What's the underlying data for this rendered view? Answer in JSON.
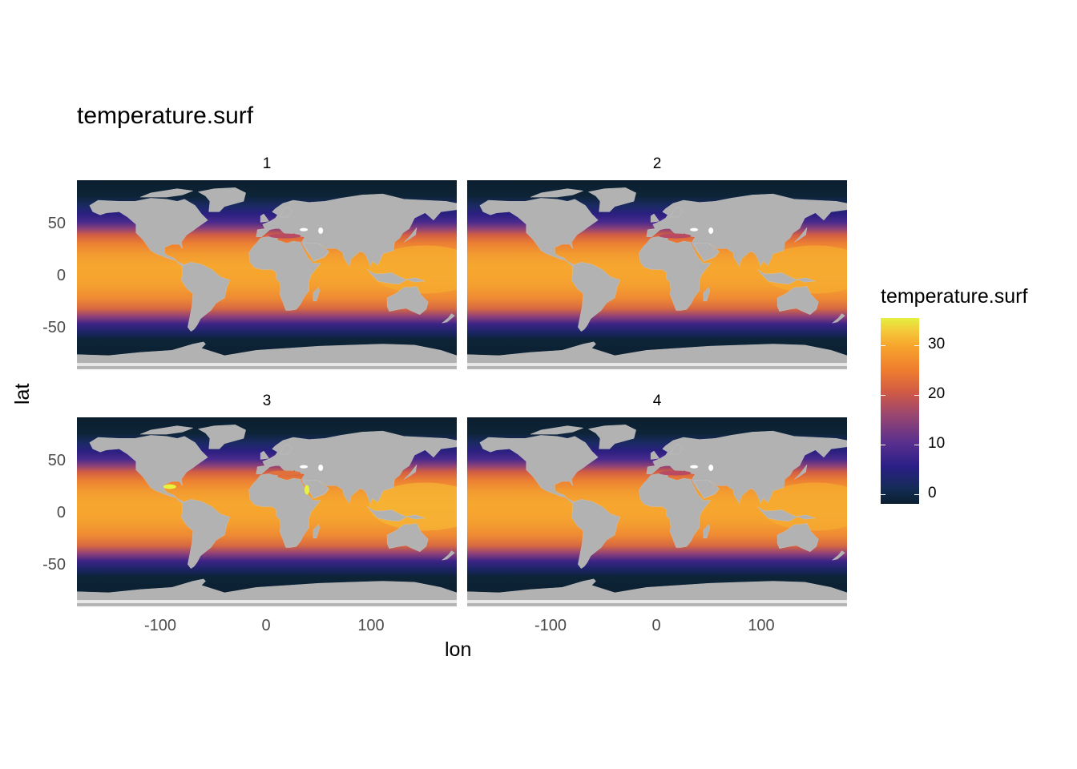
{
  "title": "temperature.surf",
  "x_axis": {
    "label": "lon",
    "ticks": [
      "-100",
      "0",
      "100"
    ]
  },
  "y_axis": {
    "label": "lat",
    "ticks": [
      "50",
      "0",
      "-50"
    ]
  },
  "panels": [
    {
      "label": "1"
    },
    {
      "label": "2"
    },
    {
      "label": "3"
    },
    {
      "label": "4"
    }
  ],
  "legend": {
    "title": "temperature.surf",
    "ticks": [
      "30",
      "20",
      "10",
      "0"
    ],
    "colormap": "thermal (dark navy to purple to orange to yellow)",
    "range": [
      -2,
      35
    ]
  },
  "colors": {
    "land": "#b2b2b2",
    "polar_ocean": "#0d2437",
    "cold_ocean": "#2b1f74",
    "mid_ocean": "#a84c6c",
    "warm_ocean": "#ec7f33",
    "tropical_ocean": "#f6a92f",
    "hot_spot": "#e8f23f"
  },
  "chart_data": {
    "type": "heatmap",
    "title": "temperature.surf",
    "xlabel": "lon",
    "ylabel": "lat",
    "xlim": [
      -180,
      180
    ],
    "ylim": [
      -90,
      90
    ],
    "facets": [
      "1",
      "2",
      "3",
      "4"
    ],
    "fill_variable": "temperature.surf",
    "fill_range": [
      -2,
      35
    ],
    "approx_zonal_profile": {
      "lat": [
        85,
        70,
        60,
        50,
        40,
        30,
        20,
        10,
        0,
        -10,
        -20,
        -30,
        -40,
        -50,
        -60,
        -70
      ],
      "temperature": [
        -1,
        2,
        6,
        11,
        17,
        22,
        26,
        28,
        28,
        27,
        24,
        20,
        14,
        6,
        1,
        -1
      ]
    }
  }
}
